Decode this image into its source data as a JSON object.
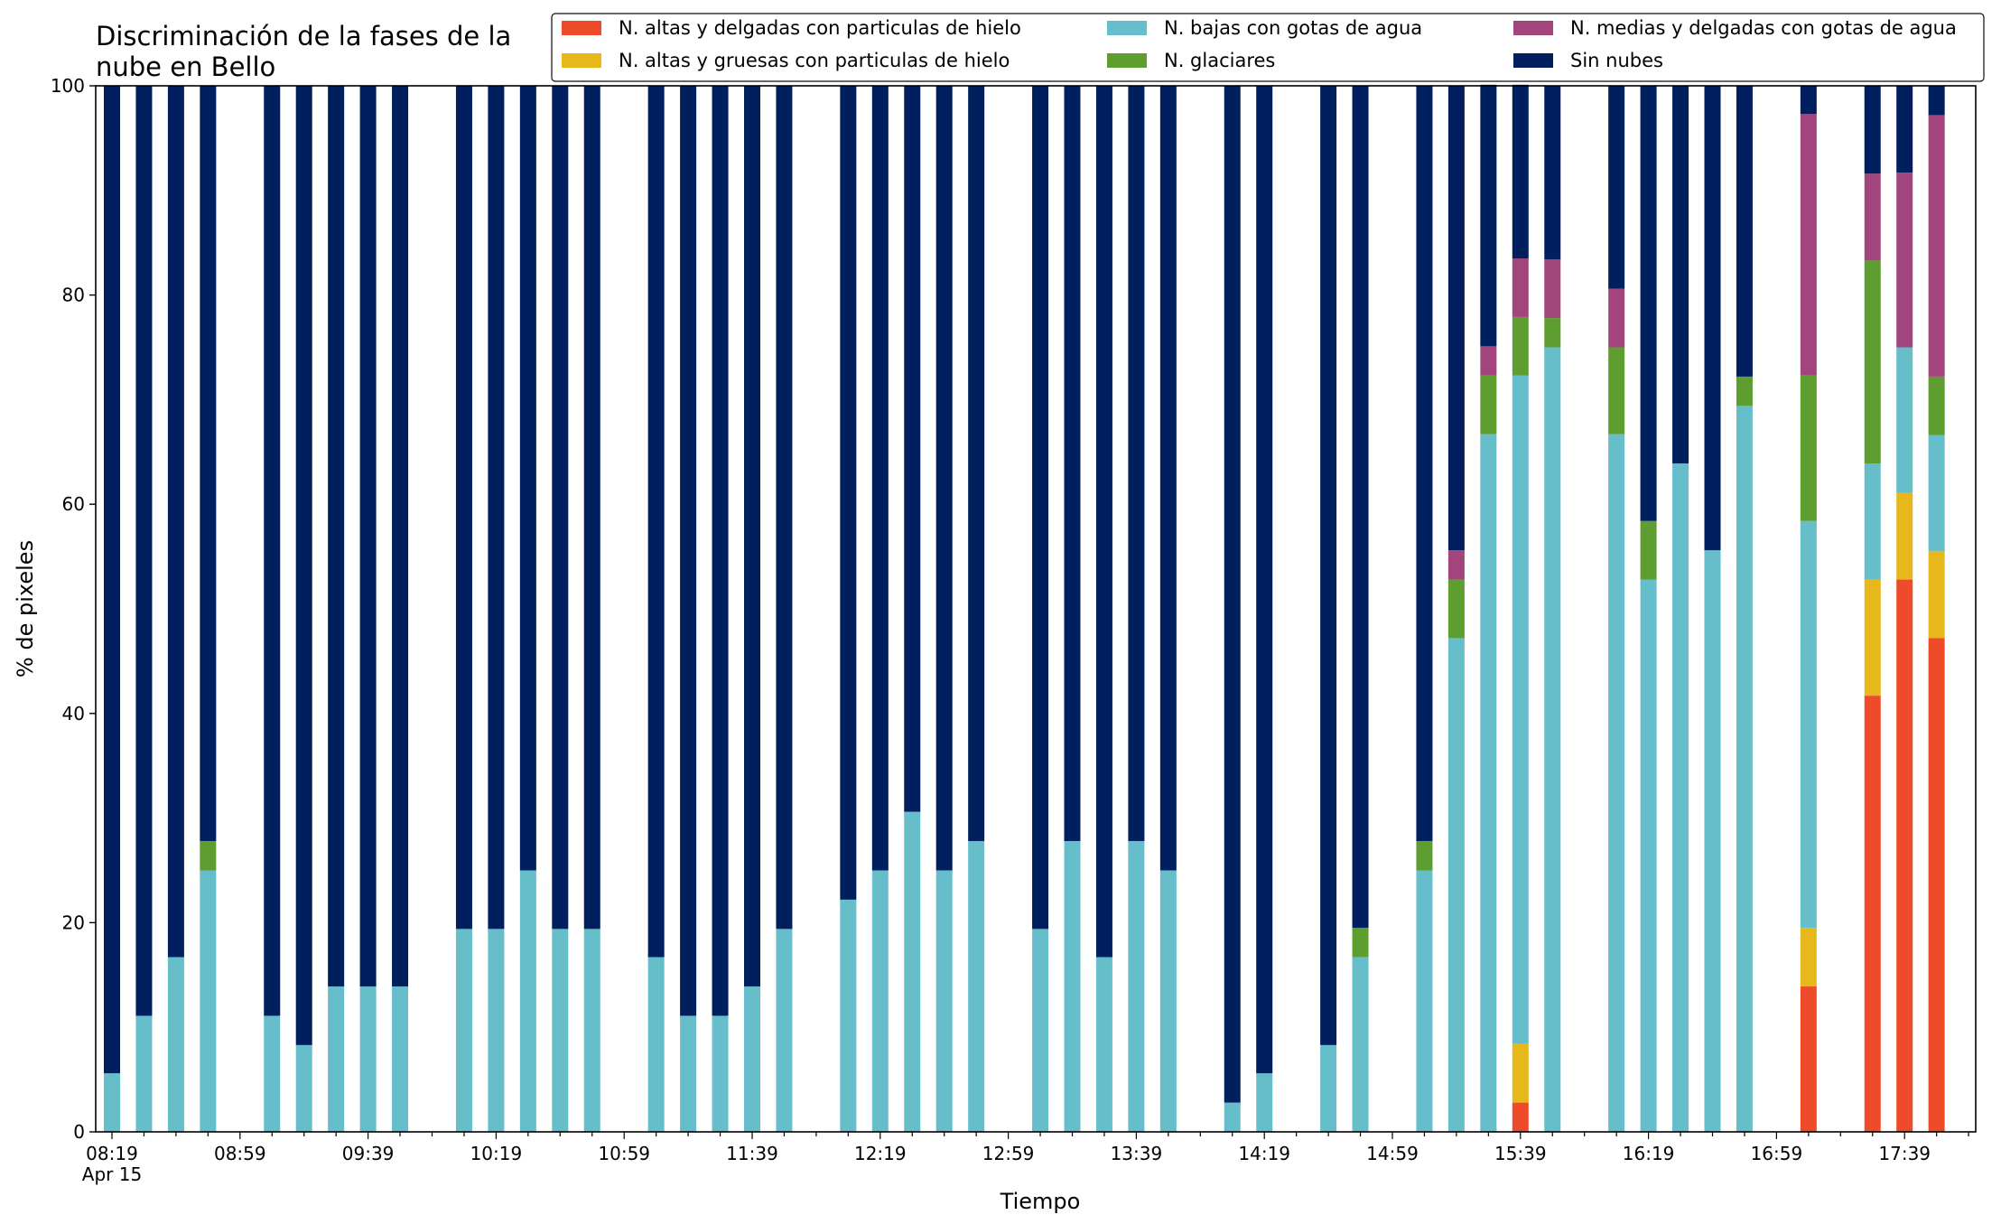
{
  "chart_data": {
    "type": "bar",
    "stacked": true,
    "title": [
      "Discriminación de la fases de la",
      "nube en Bello"
    ],
    "xlabel": "Tiempo",
    "ylabel": "% de pixeles",
    "ylim": [
      0,
      100
    ],
    "y_ticks": [
      "0",
      "20",
      "40",
      "60",
      "80",
      "100"
    ],
    "x_ticks": [
      {
        "label": "08:19",
        "sub": "Apr 15",
        "slot": 0
      },
      {
        "label": "08:59",
        "slot": 4
      },
      {
        "label": "09:39",
        "slot": 8
      },
      {
        "label": "10:19",
        "slot": 12
      },
      {
        "label": "10:59",
        "slot": 16
      },
      {
        "label": "11:39",
        "slot": 20
      },
      {
        "label": "12:19",
        "slot": 24
      },
      {
        "label": "12:59",
        "slot": 28
      },
      {
        "label": "13:39",
        "slot": 32
      },
      {
        "label": "14:19",
        "slot": 36
      },
      {
        "label": "14:59",
        "slot": 40
      },
      {
        "label": "15:39",
        "slot": 44
      },
      {
        "label": "16:19",
        "slot": 48
      },
      {
        "label": "16:59",
        "slot": 52
      },
      {
        "label": "17:39",
        "slot": 56
      }
    ],
    "grid": false,
    "legend_position": "top",
    "series": [
      {
        "name": "N. altas y delgadas con particulas de hielo",
        "color": "#EE4B2B",
        "values": [
          0,
          0,
          0,
          0,
          0,
          0,
          0,
          0,
          0,
          0,
          0,
          0,
          0,
          0,
          0,
          0,
          0,
          0,
          0,
          0,
          0,
          0,
          0,
          0,
          0,
          0,
          0,
          0,
          0,
          0,
          0,
          0,
          0,
          0,
          0,
          0,
          0,
          0,
          0,
          0,
          0,
          0,
          0,
          0,
          2.8,
          0,
          0,
          0,
          0,
          0,
          0,
          0,
          0,
          13.9,
          0,
          41.7,
          52.8,
          47.2
        ]
      },
      {
        "name": "N. altas y gruesas con particulas de hielo",
        "color": "#E6B81C",
        "values": [
          0,
          0,
          0,
          0,
          0,
          0,
          0,
          0,
          0,
          0,
          0,
          0,
          0,
          0,
          0,
          0,
          0,
          0,
          0,
          0,
          0,
          0,
          0,
          0,
          0,
          0,
          0,
          0,
          0,
          0,
          0,
          0,
          0,
          0,
          0,
          0,
          0,
          0,
          0,
          0,
          0,
          0,
          0,
          0,
          5.6,
          0,
          0,
          0,
          0,
          0,
          0,
          0,
          0,
          5.6,
          0,
          11.1,
          8.3,
          8.3
        ]
      },
      {
        "name": "N. bajas con gotas de agua",
        "color": "#66BECB",
        "values": [
          5.6,
          11.1,
          16.7,
          25.0,
          0,
          11.1,
          8.3,
          13.9,
          13.9,
          13.9,
          0,
          19.4,
          19.4,
          25.0,
          19.4,
          19.4,
          0,
          16.7,
          11.1,
          11.1,
          13.9,
          19.4,
          0,
          22.2,
          25.0,
          30.6,
          25.0,
          27.8,
          0,
          19.4,
          27.8,
          16.7,
          27.8,
          25.0,
          0,
          2.8,
          5.6,
          0,
          8.3,
          16.7,
          0,
          25.0,
          47.2,
          66.7,
          63.9,
          75.0,
          0,
          66.7,
          52.8,
          63.9,
          55.6,
          69.4,
          0,
          38.9,
          0,
          11.1,
          13.9,
          11.1
        ]
      },
      {
        "name": "N. glaciares",
        "color": "#5E9E30",
        "values": [
          0,
          0,
          0,
          2.8,
          0,
          0,
          0,
          0,
          0,
          0,
          0,
          0,
          0,
          0,
          0,
          0,
          0,
          0,
          0,
          0,
          0,
          0,
          0,
          0,
          0,
          0,
          0,
          0,
          0,
          0,
          0,
          0,
          0,
          0,
          0,
          0,
          0,
          0,
          0,
          2.8,
          0,
          2.8,
          5.6,
          5.6,
          5.6,
          2.8,
          0,
          8.3,
          5.6,
          0,
          0,
          2.8,
          0,
          13.9,
          0,
          19.4,
          0,
          5.6
        ]
      },
      {
        "name": "N. medias y delgadas con gotas de agua",
        "color": "#A1457C",
        "values": [
          0,
          0,
          0,
          0,
          0,
          0,
          0,
          0,
          0,
          0,
          0,
          0,
          0,
          0,
          0,
          0,
          0,
          0,
          0,
          0,
          0,
          0,
          0,
          0,
          0,
          0,
          0,
          0,
          0,
          0,
          0,
          0,
          0,
          0,
          0,
          0,
          0,
          0,
          0,
          0,
          0,
          0,
          2.8,
          2.8,
          5.6,
          5.6,
          0,
          5.6,
          0,
          0,
          0,
          0,
          0,
          25.0,
          0,
          8.3,
          16.7,
          25.0
        ]
      },
      {
        "name": "Sin nubes",
        "color": "#001F5E",
        "values": [
          94.4,
          88.9,
          83.3,
          72.2,
          0,
          88.9,
          91.7,
          86.1,
          86.1,
          86.1,
          0,
          80.6,
          80.6,
          75.0,
          80.6,
          80.6,
          0,
          83.3,
          88.9,
          88.9,
          86.1,
          80.6,
          0,
          77.8,
          75.0,
          69.4,
          75.0,
          72.2,
          0,
          80.6,
          72.2,
          83.3,
          72.2,
          75.0,
          0,
          97.2,
          94.4,
          0,
          91.7,
          80.5,
          0,
          72.2,
          44.4,
          25.0,
          16.6,
          16.6,
          0,
          19.4,
          41.6,
          36.1,
          44.4,
          27.8,
          0,
          2.7,
          0,
          8.4,
          8.3,
          2.8
        ]
      }
    ]
  }
}
